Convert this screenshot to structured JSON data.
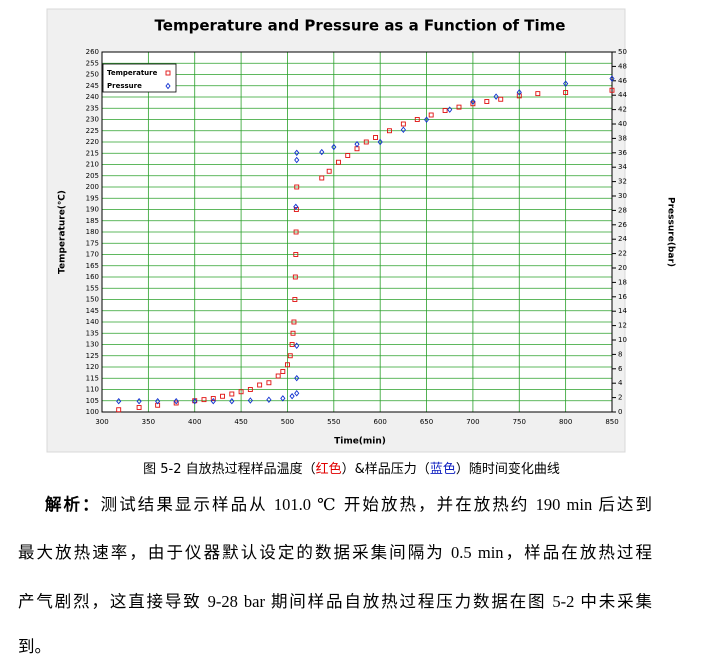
{
  "chart_data": {
    "type": "scatter",
    "title": "Temperature and Pressure as a Function of Time",
    "x_label": "Time(min)",
    "y_label": "Temperature(℃)",
    "y2_label": "Pressure(bar)",
    "xlim": [
      300,
      850
    ],
    "xticks": [
      300,
      350,
      400,
      450,
      500,
      550,
      600,
      650,
      700,
      750,
      800,
      850
    ],
    "ylim": [
      100,
      260
    ],
    "yticks": [
      100,
      105,
      110,
      115,
      120,
      125,
      130,
      135,
      140,
      145,
      150,
      155,
      160,
      165,
      170,
      175,
      180,
      185,
      190,
      195,
      200,
      205,
      210,
      215,
      220,
      225,
      230,
      235,
      240,
      245,
      250,
      255,
      260
    ],
    "y2lim": [
      0,
      50
    ],
    "y2ticks": [
      0,
      2,
      4,
      6,
      8,
      10,
      12,
      14,
      16,
      18,
      20,
      22,
      24,
      26,
      28,
      30,
      32,
      34,
      36,
      38,
      40,
      42,
      44,
      46,
      48,
      50
    ],
    "grid": true,
    "grid_color": "#2aa02a",
    "legend": "upper left",
    "series": [
      {
        "name": "Temperature",
        "color": "#e01010",
        "marker": "square",
        "axis": "y",
        "x": [
          318,
          340,
          360,
          380,
          400,
          410,
          420,
          430,
          440,
          450,
          460,
          470,
          480,
          490,
          495,
          500,
          503,
          505,
          506,
          507,
          508,
          508.5,
          509,
          509.3,
          509.6,
          510,
          537,
          545,
          555,
          565,
          575,
          585,
          595,
          610,
          625,
          640,
          655,
          670,
          685,
          700,
          715,
          730,
          750,
          770,
          800,
          850
        ],
        "values": [
          101,
          102,
          103,
          104,
          105,
          105.5,
          106,
          107,
          108,
          109,
          110,
          112,
          113,
          116,
          118,
          121,
          125,
          130,
          135,
          140,
          150,
          160,
          170,
          180,
          190,
          200,
          204,
          207,
          211,
          214,
          217,
          220,
          222,
          225,
          228,
          230,
          232,
          234,
          235.5,
          237,
          238,
          239,
          240.5,
          241.5,
          242,
          243
        ]
      },
      {
        "name": "Pressure",
        "color": "#1030d0",
        "marker": "diamond",
        "axis": "y2",
        "x": [
          318,
          340,
          360,
          380,
          400,
          420,
          440,
          460,
          480,
          495,
          505,
          510,
          510,
          510,
          509,
          510,
          510,
          537,
          550,
          575,
          600,
          625,
          650,
          675,
          700,
          725,
          750,
          800,
          850
        ],
        "values": [
          1.5,
          1.5,
          1.5,
          1.5,
          1.5,
          1.5,
          1.5,
          1.6,
          1.7,
          1.9,
          2.2,
          2.6,
          4.7,
          9.2,
          28.5,
          35,
          36,
          36.1,
          36.8,
          37.2,
          37.5,
          39.2,
          40.6,
          42,
          43.1,
          43.8,
          44.4,
          45.6,
          46.3
        ]
      }
    ]
  },
  "caption": [
    "图 5-2 自放热过程样品温度（",
    "红色",
    "）&样品压力（",
    "蓝色",
    "）随时间变化曲线"
  ],
  "paragraph": {
    "label": "解析：",
    "lines": [
      "测试结果显示样品从 101.0 ℃ 开始放热，并在放热约 190 min 后达到",
      "最大放热速率，由于仪器默认设定的数据采集间隔为 0.5 min，样品在放热过程",
      "产气剧烈，这直接导致 9-28 bar 期间样品自放热过程压力数据在图 5-2 中未采集",
      "到。"
    ]
  }
}
